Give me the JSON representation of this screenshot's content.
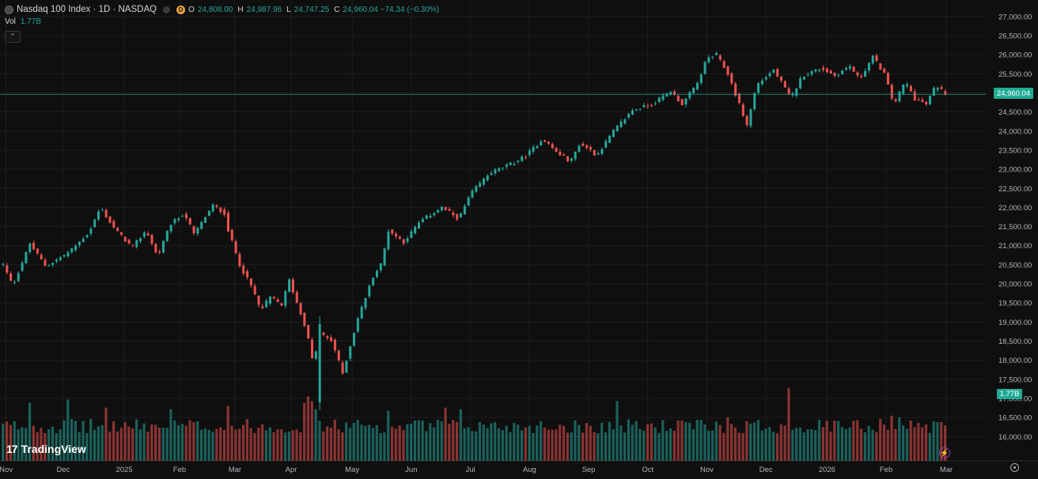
{
  "header": {
    "title": "Nasdaq 100 Index · 1D · NASDAQ",
    "badge": "D",
    "ohlc": [
      {
        "label": "O",
        "value": "24,808.00"
      },
      {
        "label": "H",
        "value": "24,987.96"
      },
      {
        "label": "L",
        "value": "24,747.25"
      },
      {
        "label": "C",
        "value": "24,960.04 −74.34 (−0.30%)"
      }
    ]
  },
  "volume": {
    "label": "Vol",
    "value": "1.77B"
  },
  "price_tag": "24,960.04",
  "volume_tag": "1.77B",
  "logo": {
    "mark": "17",
    "text": "TradingView"
  },
  "colors": {
    "up": "#26a69a",
    "down": "#ef5350",
    "background": "#0f0f0f",
    "grid": "#1e1e1e",
    "last_price_line": "#22ab94"
  },
  "icons": {
    "settings": "gear-icon",
    "replay": "bolt-icon",
    "collapse": "chevron-up-icon"
  },
  "chart_data": {
    "type": "candlestick",
    "yaxis": {
      "side": "right",
      "ylim": [
        15800,
        27100
      ],
      "tick_labels": [
        "27,000.00",
        "26,500.00",
        "26,000.00",
        "25,500.00",
        "25,000.00",
        "24,500.00",
        "24,000.00",
        "23,500.00",
        "23,000.00",
        "22,500.00",
        "22,000.00",
        "21,500.00",
        "21,000.00",
        "20,500.00",
        "20,000.00",
        "19,500.00",
        "19,000.00",
        "18,500.00",
        "18,000.00",
        "17,500.00",
        "17,000.00",
        "16,500.00",
        "16,000.00"
      ],
      "tick_values": [
        27000,
        26500,
        26000,
        25500,
        25000,
        24500,
        24000,
        23500,
        23000,
        22500,
        22000,
        21500,
        21000,
        20500,
        20000,
        19500,
        19000,
        18500,
        18000,
        17500,
        17000,
        16500,
        16000
      ]
    },
    "xaxis": {
      "labels": [
        "Nov",
        "Dec",
        "2025",
        "Feb",
        "Mar",
        "Apr",
        "May",
        "Jun",
        "Jul",
        "Aug",
        "Sep",
        "Oct",
        "Nov",
        "Dec",
        "2026",
        "Feb",
        "Mar"
      ],
      "label_index": [
        3,
        63,
        127,
        185,
        243,
        302,
        366,
        428,
        490,
        552,
        614,
        676,
        738,
        800,
        864,
        926,
        989
      ]
    },
    "close_path_anchors": [
      [
        0,
        20500
      ],
      [
        10,
        19950
      ],
      [
        28,
        21050
      ],
      [
        45,
        20450
      ],
      [
        70,
        20850
      ],
      [
        90,
        21350
      ],
      [
        102,
        22000
      ],
      [
        115,
        21500
      ],
      [
        135,
        20950
      ],
      [
        150,
        21400
      ],
      [
        162,
        20700
      ],
      [
        175,
        21550
      ],
      [
        190,
        21850
      ],
      [
        200,
        21300
      ],
      [
        220,
        22050
      ],
      [
        232,
        21850
      ],
      [
        236,
        21400
      ],
      [
        248,
        20500
      ],
      [
        262,
        19850
      ],
      [
        270,
        19300
      ],
      [
        280,
        19650
      ],
      [
        292,
        19450
      ],
      [
        300,
        20100
      ],
      [
        308,
        19500
      ],
      [
        318,
        18800
      ],
      [
        325,
        17900
      ],
      [
        332,
        18700
      ],
      [
        345,
        18500
      ],
      [
        356,
        17650
      ],
      [
        362,
        18200
      ],
      [
        372,
        19100
      ],
      [
        388,
        20200
      ],
      [
        397,
        20550
      ],
      [
        404,
        21400
      ],
      [
        420,
        21100
      ],
      [
        438,
        21650
      ],
      [
        460,
        22000
      ],
      [
        478,
        21700
      ],
      [
        490,
        22350
      ],
      [
        510,
        22900
      ],
      [
        534,
        23150
      ],
      [
        548,
        23350
      ],
      [
        566,
        23800
      ],
      [
        580,
        23450
      ],
      [
        595,
        23200
      ],
      [
        604,
        23650
      ],
      [
        614,
        23550
      ],
      [
        622,
        23350
      ],
      [
        640,
        24000
      ],
      [
        660,
        24550
      ],
      [
        680,
        24700
      ],
      [
        700,
        25050
      ],
      [
        712,
        24700
      ],
      [
        728,
        25250
      ],
      [
        738,
        25900
      ],
      [
        748,
        26000
      ],
      [
        760,
        25500
      ],
      [
        772,
        24700
      ],
      [
        780,
        24150
      ],
      [
        790,
        25200
      ],
      [
        808,
        25600
      ],
      [
        818,
        25200
      ],
      [
        826,
        24850
      ],
      [
        838,
        25450
      ],
      [
        858,
        25650
      ],
      [
        872,
        25450
      ],
      [
        888,
        25700
      ],
      [
        898,
        25350
      ],
      [
        912,
        25950
      ],
      [
        924,
        25500
      ],
      [
        934,
        24700
      ],
      [
        946,
        25300
      ],
      [
        956,
        24850
      ],
      [
        968,
        24700
      ],
      [
        978,
        25200
      ],
      [
        989,
        24960
      ]
    ],
    "dip_candles": [
      {
        "i": 330,
        "o": 18900,
        "h": 19050,
        "l": 16550,
        "c": 16900
      },
      {
        "i": 332,
        "o": 16900,
        "h": 19150,
        "l": 16700,
        "c": 18950
      }
    ],
    "last_close": 24960.04,
    "volume_units": "shares",
    "last_volume": 1770000000.0,
    "volume_spikes": [
      {
        "i": 28,
        "v": 3600000000.0
      },
      {
        "i": 70,
        "v": 3800000000.0
      },
      {
        "i": 110,
        "v": 3300000000.0
      },
      {
        "i": 176,
        "v": 3200000000.0
      },
      {
        "i": 238,
        "v": 3400000000.0
      },
      {
        "i": 318,
        "v": 3600000000.0
      },
      {
        "i": 320,
        "v": 4300000000.0
      },
      {
        "i": 322,
        "v": 4000000000.0
      },
      {
        "i": 324,
        "v": 3900000000.0
      },
      {
        "i": 326,
        "v": 3700000000.0
      },
      {
        "i": 328,
        "v": 3200000000.0
      },
      {
        "i": 404,
        "v": 3100000000.0
      },
      {
        "i": 466,
        "v": 3300000000.0
      },
      {
        "i": 482,
        "v": 3200000000.0
      },
      {
        "i": 644,
        "v": 3700000000.0
      },
      {
        "i": 760,
        "v": 2700000000.0
      },
      {
        "i": 826,
        "v": 4500000000.0
      },
      {
        "i": 922,
        "v": 2600000000.0
      },
      {
        "i": 932,
        "v": 2800000000.0
      },
      {
        "i": 942,
        "v": 2700000000.0
      },
      {
        "i": 987,
        "v": 2400000000.0
      }
    ]
  }
}
